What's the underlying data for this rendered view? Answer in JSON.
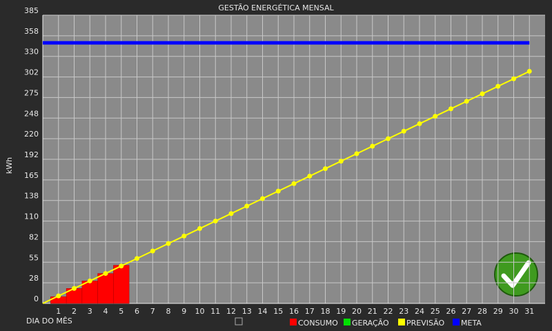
{
  "chart_data": {
    "type": "combo",
    "title": "GESTÃO ENERGÉTICA MENSAL",
    "y_label": "kWh",
    "x_label": "DIA DO MÊS",
    "ylim": [
      0,
      385
    ],
    "yticks": [
      0,
      {
        "value": 27.5,
        "label": "28"
      },
      55,
      {
        "value": 82.5,
        "label": "82"
      },
      110,
      {
        "value": 137.5,
        "label": "138"
      },
      165,
      {
        "value": 192.5,
        "label": "192"
      },
      220,
      {
        "value": 247.5,
        "label": "248"
      },
      275,
      {
        "value": 302.5,
        "label": "302"
      },
      330,
      {
        "value": 357.5,
        "label": "358"
      },
      385
    ],
    "xlim": [
      0,
      32
    ],
    "xticks": [
      1,
      2,
      3,
      4,
      5,
      6,
      7,
      8,
      9,
      10,
      11,
      12,
      13,
      14,
      15,
      16,
      17,
      18,
      19,
      20,
      21,
      22,
      23,
      24,
      25,
      26,
      27,
      28,
      29,
      30,
      31
    ],
    "grid": true,
    "series": [
      {
        "name": "CONSUMO",
        "color": "#ff0000",
        "kind": "bar",
        "x": [
          1,
          2,
          3,
          4,
          5
        ],
        "values": [
          9,
          20,
          30,
          40,
          51
        ]
      },
      {
        "name": "GERAÇÃO",
        "color": "#00e000",
        "kind": "bar"
      },
      {
        "name": "PREVISÃO",
        "color": "#ffff00",
        "kind": "line-markers",
        "x": [
          0,
          1,
          2,
          3,
          4,
          5,
          6,
          7,
          8,
          9,
          10,
          11,
          12,
          13,
          14,
          15,
          16,
          17,
          18,
          19,
          20,
          21,
          22,
          23,
          24,
          25,
          26,
          27,
          28,
          29,
          30,
          31
        ],
        "values": [
          0,
          10,
          20,
          30,
          40,
          50,
          60,
          70,
          80,
          90,
          100,
          110,
          120,
          130,
          140,
          150,
          160,
          170,
          180,
          190,
          200,
          210,
          220,
          230,
          240,
          250,
          260,
          270,
          280,
          290,
          300,
          310
        ]
      },
      {
        "name": "META",
        "color": "#0000ff",
        "kind": "line",
        "x": [
          0,
          31
        ],
        "values": [
          348,
          348
        ]
      }
    ]
  }
}
